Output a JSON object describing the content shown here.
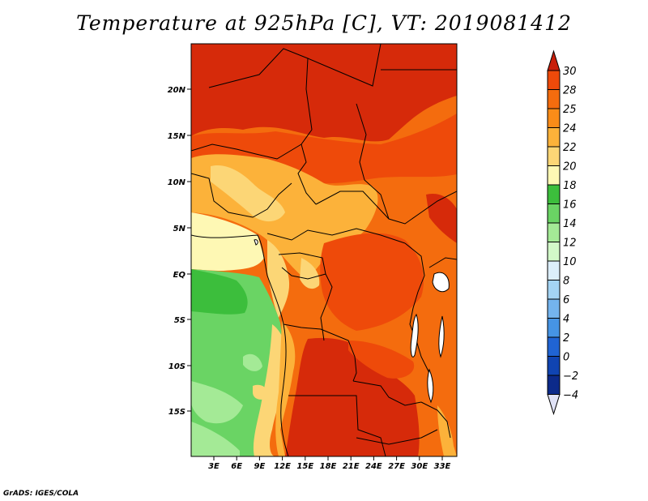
{
  "title": "Temperature at 925hPa [C], VT: 2019081412",
  "credit": "GrADS: IGES/COLA",
  "map": {
    "lat_labels": [
      "20N",
      "15N",
      "10N",
      "5N",
      "EQ",
      "5S",
      "10S",
      "15S"
    ],
    "lon_labels": [
      "3E",
      "6E",
      "9E",
      "12E",
      "15E",
      "18E",
      "21E",
      "24E",
      "27E",
      "30E",
      "33E"
    ],
    "lat_range": [
      -18.5,
      24.5
    ],
    "lon_range": [
      0.5,
      35.5
    ],
    "variable": "Temperature at 925hPa",
    "units": "C"
  },
  "colorbar": {
    "levels": [
      "30",
      "28",
      "25",
      "24",
      "22",
      "20",
      "18",
      "16",
      "14",
      "12",
      "10",
      "8",
      "6",
      "4",
      "2",
      "0",
      "-2",
      "-4"
    ],
    "colors": [
      "#d62a0a",
      "#ee4a0a",
      "#f46c0e",
      "#fa8c18",
      "#fcb23a",
      "#fcd676",
      "#fef8b4",
      "#3cbe3c",
      "#6ad464",
      "#a4ea96",
      "#d2f8c8",
      "#dceefa",
      "#a4d4f4",
      "#74b4ee",
      "#4694e4",
      "#2064d4",
      "#1044b2",
      "#0c2a8a",
      "#081a6c"
    ],
    "top_arrow_color": "#c81e0a",
    "bottom_arrow_color": "#e0e2f6"
  }
}
